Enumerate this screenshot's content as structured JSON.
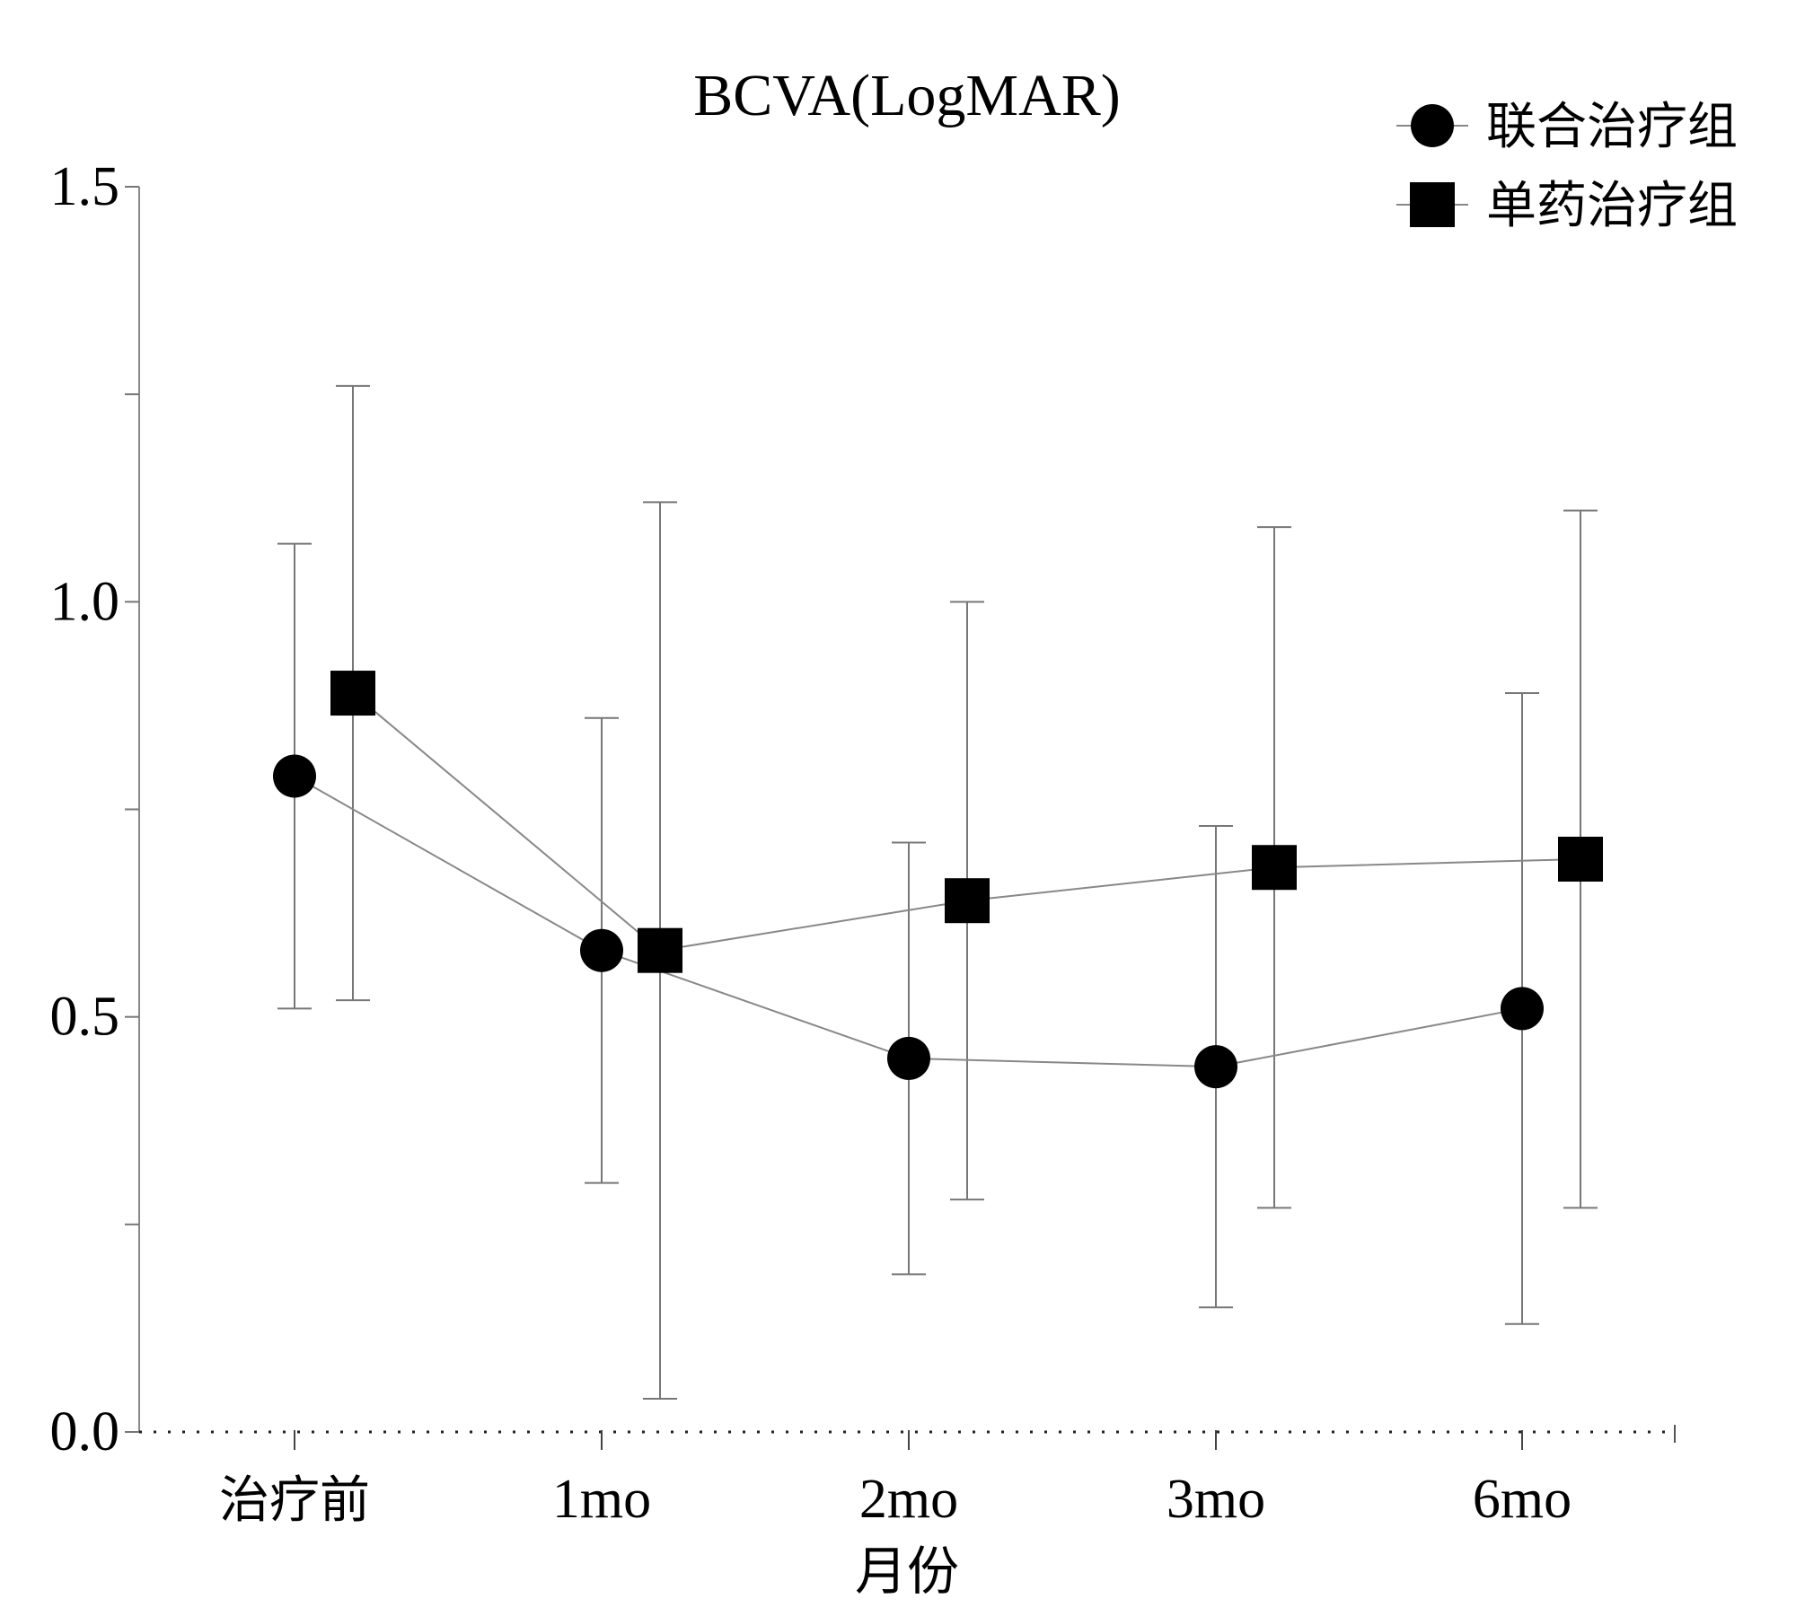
{
  "chart_data": {
    "type": "line",
    "title": "BCVA(LogMAR)",
    "xlabel": "月份",
    "ylabel": "",
    "ylim": [
      0,
      1.5
    ],
    "yticks": [
      0.0,
      0.5,
      1.0,
      1.5
    ],
    "ytick_labels": [
      "0.0",
      "0.5",
      "1.0",
      "1.5"
    ],
    "y_minor_step": 0.25,
    "categories": [
      "治疗前",
      "1mo",
      "2mo",
      "3mo",
      "6mo"
    ],
    "legend_position": "top-right",
    "error_bars": true,
    "series": [
      {
        "name": "联合治疗组",
        "marker": "circle",
        "color": "#000000",
        "values": [
          0.79,
          0.58,
          0.45,
          0.44,
          0.51
        ],
        "error_low": [
          0.51,
          0.3,
          0.19,
          0.15,
          0.13
        ],
        "error_high": [
          1.07,
          0.86,
          0.71,
          0.73,
          0.89
        ]
      },
      {
        "name": "单药治疗组",
        "marker": "square",
        "color": "#000000",
        "values": [
          0.89,
          0.58,
          0.64,
          0.68,
          0.69
        ],
        "error_low": [
          0.52,
          0.04,
          0.28,
          0.27,
          0.27
        ],
        "error_high": [
          1.26,
          1.12,
          1.0,
          1.09,
          1.11
        ]
      }
    ]
  }
}
